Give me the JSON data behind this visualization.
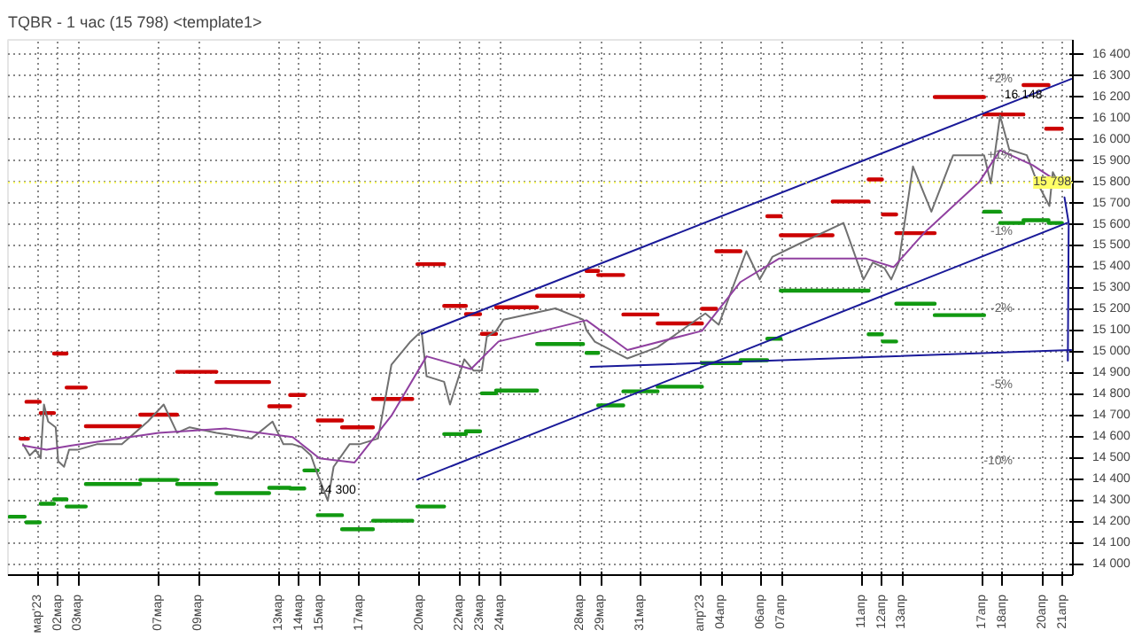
{
  "chart_data": {
    "type": "line",
    "title": "TQBR - 1 час (15 798) <template1>",
    "xlim": [
      "2023-02-27T12:00",
      "2023-04-21T12:00"
    ],
    "ylim": [
      13950,
      16470
    ],
    "xticks": [
      {
        "value": "2023-03-01",
        "label": "мар'23"
      },
      {
        "value": "2023-03-02",
        "label": "02мар"
      },
      {
        "value": "2023-03-03",
        "label": "03мар"
      },
      {
        "value": "2023-03-07",
        "label": "07мар"
      },
      {
        "value": "2023-03-09",
        "label": "09мар"
      },
      {
        "value": "2023-03-13",
        "label": "13мар"
      },
      {
        "value": "2023-03-14",
        "label": "14мар"
      },
      {
        "value": "2023-03-15",
        "label": "15мар"
      },
      {
        "value": "2023-03-17",
        "label": "17мар"
      },
      {
        "value": "2023-03-20",
        "label": "20мар"
      },
      {
        "value": "2023-03-22",
        "label": "22мар"
      },
      {
        "value": "2023-03-23",
        "label": "23мар"
      },
      {
        "value": "2023-03-24",
        "label": "24мар"
      },
      {
        "value": "2023-03-28",
        "label": "28мар"
      },
      {
        "value": "2023-03-29",
        "label": "29мар"
      },
      {
        "value": "2023-03-31",
        "label": "31мар"
      },
      {
        "value": "2023-04-03",
        "label": "апр'23"
      },
      {
        "value": "2023-04-04",
        "label": "04апр"
      },
      {
        "value": "2023-04-06",
        "label": "06апр"
      },
      {
        "value": "2023-04-07",
        "label": "07апр"
      },
      {
        "value": "2023-04-11",
        "label": "11апр"
      },
      {
        "value": "2023-04-12",
        "label": "12апр"
      },
      {
        "value": "2023-04-13",
        "label": "13апр"
      },
      {
        "value": "2023-04-17",
        "label": "17апр"
      },
      {
        "value": "2023-04-18",
        "label": "18апр"
      },
      {
        "value": "2023-04-20",
        "label": "20апр"
      },
      {
        "value": "2023-04-21",
        "label": "21апр"
      }
    ],
    "yticks": [
      {
        "value": 14000,
        "label": "14 000"
      },
      {
        "value": 14100,
        "label": "14 100"
      },
      {
        "value": 14200,
        "label": "14 200"
      },
      {
        "value": 14300,
        "label": "14 300"
      },
      {
        "value": 14400,
        "label": "14 400"
      },
      {
        "value": 14500,
        "label": "14 500"
      },
      {
        "value": 14600,
        "label": "14 600"
      },
      {
        "value": 14700,
        "label": "14 700"
      },
      {
        "value": 14800,
        "label": "14 800"
      },
      {
        "value": 14900,
        "label": "14 900"
      },
      {
        "value": 15000,
        "label": "15 000"
      },
      {
        "value": 15100,
        "label": "15 100"
      },
      {
        "value": 15200,
        "label": "15 200"
      },
      {
        "value": 15300,
        "label": "15 300"
      },
      {
        "value": 15400,
        "label": "15 400"
      },
      {
        "value": 15500,
        "label": "15 500"
      },
      {
        "value": 15600,
        "label": "15 600"
      },
      {
        "value": 15700,
        "label": "15 700"
      },
      {
        "value": 15800,
        "label": "15 800"
      },
      {
        "value": 15900,
        "label": "15 900"
      },
      {
        "value": 16000,
        "label": "16 000"
      },
      {
        "value": 16100,
        "label": "16 100"
      },
      {
        "value": 16200,
        "label": "16 200"
      },
      {
        "value": 16300,
        "label": "16 300"
      },
      {
        "value": 16400,
        "label": "16 400"
      }
    ],
    "grid": true,
    "line_style": "solid",
    "series": [
      {
        "color": "#cc0000",
        "x": [
          "2023-02-28T03:00",
          "2023-02-28T12:00",
          null,
          "2023-02-28T10:00",
          "2023-03-01T02:00",
          null,
          "2023-03-01T03:00",
          "2023-03-01T19:00",
          null,
          "2023-03-01T19:00",
          "2023-03-02T10:00",
          null,
          "2023-03-02T10:00",
          "2023-03-03T09:00",
          null,
          "2023-03-03T09:00",
          "2023-03-06T02:00",
          null,
          "2023-03-06T02:00",
          "2023-03-07T22:00",
          null,
          "2023-03-07T22:00",
          "2023-03-09T21:00",
          null,
          "2023-03-09T21:00",
          "2023-03-12T12:00",
          null,
          "2023-03-12T12:00",
          "2023-03-13T13:00",
          null,
          "2023-03-13T13:00",
          "2023-03-14T06:00",
          null,
          "2023-03-14T22:00",
          "2023-03-16T03:00",
          null,
          "2023-03-16T03:00",
          "2023-03-17T16:00",
          null,
          "2023-03-17T16:00",
          "2023-03-19T15:00",
          null,
          "2023-03-19T21:00",
          "2023-03-21T05:00",
          null,
          "2023-03-21T05:00",
          "2023-03-22T07:00",
          null,
          "2023-03-22T07:00",
          "2023-03-23T00:00",
          null,
          "2023-03-23T02:00",
          "2023-03-23T19:00",
          null,
          "2023-03-23T19:00",
          "2023-03-25T20:00",
          null,
          "2023-03-25T20:00",
          "2023-03-28T03:00",
          null,
          "2023-03-28T07:00",
          "2023-03-28T21:00",
          null,
          "2023-03-28T21:00",
          "2023-03-30T03:00",
          null,
          "2023-03-30T03:00",
          "2023-03-31T20:00",
          null,
          "2023-03-31T20:00",
          "2023-04-03T01:00",
          null,
          "2023-04-03T01:00",
          "2023-04-03T18:00",
          null,
          "2023-04-03T18:00",
          "2023-04-04T23:00",
          null,
          "2023-04-06T07:00",
          "2023-04-06T23:00",
          null,
          "2023-04-06T23:00",
          "2023-04-09T13:00",
          null,
          "2023-04-09T13:00",
          "2023-04-11T08:00",
          null,
          "2023-04-11T08:00",
          "2023-04-12T00:00",
          null,
          "2023-04-12T01:00",
          "2023-04-12T17:00",
          null,
          "2023-04-12T17:00",
          "2023-04-14T15:00",
          null,
          "2023-04-14T15:00",
          "2023-04-17T02:00",
          null,
          "2023-04-17T02:00",
          "2023-04-17T21:00",
          null,
          "2023-04-17T21:00",
          "2023-04-19T01:00",
          null,
          "2023-04-19T01:00",
          "2023-04-20T07:00",
          null,
          "2023-04-20T04:00",
          "2023-04-20T23:00"
        ],
        "values": [
          14592,
          14592,
          null,
          14766,
          14766,
          null,
          14713,
          14713,
          null,
          14993,
          14993,
          null,
          14833,
          14833,
          null,
          14651,
          14651,
          null,
          14705,
          14705,
          null,
          14907,
          14907,
          null,
          14859,
          14859,
          null,
          14745,
          14745,
          null,
          14798,
          14798,
          null,
          14678,
          14678,
          null,
          14646,
          14646,
          null,
          14779,
          14779,
          null,
          15414,
          15414,
          null,
          15217,
          15217,
          null,
          15179,
          15179,
          null,
          15086,
          15086,
          null,
          15211,
          15211,
          null,
          15265,
          15265,
          null,
          15382,
          15382,
          null,
          15363,
          15363,
          null,
          15177,
          15177,
          null,
          15135,
          15135,
          null,
          15204,
          15204,
          null,
          15475,
          15475,
          null,
          15640,
          15640,
          null,
          15550,
          15550,
          null,
          15709,
          15709,
          null,
          15813,
          15813,
          null,
          15648,
          15648,
          null,
          15560,
          15560,
          null,
          16201,
          16201,
          null,
          16119,
          16119,
          null,
          16119,
          16119,
          null,
          16257,
          16257,
          null,
          16052,
          16052
        ]
      },
      {
        "color": "#119911",
        "x": [
          "2023-02-27T14:00",
          "2023-02-28T08:00",
          null,
          "2023-02-28T10:00",
          "2023-03-01T02:00",
          null,
          "2023-03-01T03:00",
          "2023-03-01T19:00",
          null,
          "2023-03-01T19:00",
          "2023-03-02T10:00",
          null,
          "2023-03-02T10:00",
          "2023-03-03T09:00",
          null,
          "2023-03-03T09:00",
          "2023-03-06T02:00",
          null,
          "2023-03-06T02:00",
          "2023-03-07T22:00",
          null,
          "2023-03-07T22:00",
          "2023-03-09T21:00",
          null,
          "2023-03-09T21:00",
          "2023-03-12T12:00",
          null,
          "2023-03-12T12:00",
          "2023-03-13T13:00",
          null,
          "2023-03-13T13:00",
          "2023-03-14T06:00",
          null,
          "2023-03-14T06:00",
          "2023-03-14T22:00",
          null,
          "2023-03-14T22:00",
          "2023-03-16T03:00",
          null,
          "2023-03-16T03:00",
          "2023-03-17T16:00",
          null,
          "2023-03-17T16:00",
          "2023-03-19T15:00",
          null,
          "2023-03-19T21:00",
          "2023-03-21T05:00",
          null,
          "2023-03-21T05:00",
          "2023-03-22T07:00",
          null,
          "2023-03-22T07:00",
          "2023-03-23T00:00",
          null,
          "2023-03-23T02:00",
          "2023-03-23T19:00",
          null,
          "2023-03-23T19:00",
          "2023-03-25T20:00",
          null,
          "2023-03-25T20:00",
          "2023-03-28T03:00",
          null,
          "2023-03-28T07:00",
          "2023-03-28T21:00",
          null,
          "2023-03-28T21:00",
          "2023-03-30T03:00",
          null,
          "2023-03-30T03:00",
          "2023-03-31T20:00",
          null,
          "2023-03-31T20:00",
          "2023-04-03T01:00",
          null,
          "2023-04-03T01:00",
          "2023-04-03T18:00",
          null,
          "2023-04-03T18:00",
          "2023-04-04T23:00",
          null,
          "2023-04-04T23:00",
          "2023-04-06T07:00",
          null,
          "2023-04-06T07:00",
          "2023-04-06T23:00",
          null,
          "2023-04-06T23:00",
          "2023-04-09T13:00",
          null,
          "2023-04-09T13:00",
          "2023-04-11T08:00",
          null,
          "2023-04-11T08:00",
          "2023-04-12T00:00",
          null,
          "2023-04-12T01:00",
          "2023-04-12T17:00",
          null,
          "2023-04-12T17:00",
          "2023-04-14T15:00",
          null,
          "2023-04-14T15:00",
          "2023-04-17T02:00",
          null,
          "2023-04-17T02:00",
          "2023-04-17T21:00",
          null,
          "2023-04-17T21:00",
          "2023-04-19T01:00",
          null,
          "2023-04-19T01:00",
          "2023-04-20T07:00",
          null,
          "2023-04-20T07:00",
          "2023-04-20T23:00"
        ],
        "values": [
          14225,
          14225,
          null,
          14198,
          14198,
          null,
          14286,
          14286,
          null,
          14307,
          14307,
          null,
          14273,
          14273,
          null,
          14379,
          14379,
          null,
          14398,
          14398,
          null,
          14379,
          14379,
          null,
          14336,
          14336,
          null,
          14361,
          14361,
          null,
          14358,
          14358,
          null,
          14443,
          14443,
          null,
          14232,
          14232,
          null,
          14166,
          14166,
          null,
          14206,
          14206,
          null,
          14273,
          14273,
          null,
          14614,
          14614,
          null,
          14627,
          14627,
          null,
          14806,
          14806,
          null,
          14819,
          14819,
          null,
          15038,
          15038,
          null,
          14996,
          14996,
          null,
          14749,
          14749,
          null,
          14815,
          14815,
          null,
          14837,
          14837,
          null,
          14948,
          14948,
          null,
          14948,
          14948,
          null,
          14962,
          14962,
          null,
          15063,
          15063,
          null,
          15289,
          15289,
          null,
          15289,
          15289,
          null,
          15084,
          15084,
          null,
          15050,
          15050,
          null,
          15228,
          15228,
          null,
          15174,
          15174,
          null,
          15661,
          15661,
          null,
          15608,
          15608,
          null,
          15621,
          15621,
          null,
          15608,
          15608
        ]
      },
      {
        "color": "#707070",
        "x": [
          "2023-02-28T06:00",
          "2023-02-28T14:00",
          "2023-02-28T21:00",
          "2023-03-01T03:00",
          "2023-03-01T07:00",
          "2023-03-01T12:00",
          "2023-03-01T21:00",
          "2023-03-02T00:00",
          "2023-03-02T07:00",
          "2023-03-02T13:00",
          "2023-03-02T23:00",
          "2023-03-03T22:00",
          "2023-03-05T04:00",
          "2023-03-06T11:00",
          "2023-03-07T06:00",
          "2023-03-07T22:00",
          "2023-03-08T13:00",
          "2023-03-09T21:00",
          "2023-03-11T15:00",
          "2023-03-12T16:00",
          "2023-03-13T05:00",
          "2023-03-13T16:00",
          "2023-03-14T03:00",
          "2023-03-14T14:00",
          "2023-03-14T21:00",
          "2023-03-15T10:00",
          "2023-03-15T17:00",
          "2023-03-16T12:00",
          "2023-03-17T00:00",
          "2023-03-17T22:00",
          "2023-03-18T14:00",
          "2023-03-19T12:00",
          "2023-03-20T02:00",
          "2023-03-20T08:00",
          "2023-03-21T05:00",
          "2023-03-21T12:00",
          "2023-03-22T05:00",
          "2023-03-22T16:00",
          "2023-03-23T02:00",
          "2023-03-23T08:00",
          "2023-03-23T19:00",
          "2023-03-24T04:00",
          "2023-03-26T18:00",
          "2023-03-28T03:00",
          "2023-03-28T07:00",
          "2023-03-28T17:00",
          "2023-03-30T08:00",
          "2023-03-31T20:00",
          "2023-04-03T05:00",
          "2023-04-03T21:00",
          "2023-04-05T06:00",
          "2023-04-05T22:00",
          "2023-04-06T13:00",
          "2023-04-07T17:00",
          "2023-04-10T02:00",
          "2023-04-11T02:00",
          "2023-04-11T13:00",
          "2023-04-12T03:00",
          "2023-04-12T11:00",
          "2023-04-12T20:00",
          "2023-04-13T13:00",
          "2023-04-14T11:00",
          "2023-04-15T13:00",
          "2023-04-17T02:00",
          "2023-04-17T10:00",
          "2023-04-17T21:00",
          "2023-04-18T08:00",
          "2023-04-19T05:00",
          "2023-04-19T18:00",
          "2023-04-20T08:00",
          "2023-04-20T12:00",
          "2023-04-20T19:00"
        ],
        "values": [
          14566,
          14513,
          14540,
          14500,
          14753,
          14673,
          14646,
          14486,
          14460,
          14540,
          14540,
          14566,
          14566,
          14673,
          14753,
          14620,
          14646,
          14620,
          14593,
          14673,
          14566,
          14566,
          14553,
          14513,
          14433,
          14300,
          14460,
          14566,
          14566,
          14593,
          14940,
          15046,
          15099,
          14886,
          14860,
          14753,
          14966,
          14913,
          14913,
          15073,
          15099,
          15153,
          15206,
          15153,
          15103,
          15049,
          14970,
          15023,
          15182,
          15129,
          15475,
          15342,
          15448,
          15502,
          15608,
          15342,
          15422,
          15395,
          15342,
          15422,
          15874,
          15661,
          15927,
          15927,
          15794,
          16113,
          15954,
          15927,
          15794,
          15688,
          15847,
          15794
        ]
      },
      {
        "color": "#9040a0",
        "x": [
          "2023-02-28T06:00",
          "2023-03-01T10:00",
          "2023-03-02T16:00",
          "2023-03-07T00:00",
          "2023-03-10T09:00",
          "2023-03-13T16:00",
          "2023-03-15T00:00",
          "2023-03-16T18:00",
          "2023-03-18T14:00",
          "2023-03-20T08:00",
          "2023-03-22T13:00",
          "2023-03-23T22:00",
          "2023-03-28T07:00",
          "2023-03-30T08:00",
          "2023-04-03T01:00",
          "2023-04-04T23:00",
          "2023-04-06T21:00",
          "2023-04-11T05:00",
          "2023-04-12T14:00",
          "2023-04-14T02:00",
          "2023-04-16T20:00",
          "2023-04-17T21:00",
          "2023-04-19T12:00",
          "2023-04-20T19:00"
        ],
        "values": [
          14560,
          14540,
          14560,
          14620,
          14640,
          14600,
          14500,
          14480,
          14700,
          14980,
          14920,
          15050,
          15150,
          15010,
          15100,
          15330,
          15440,
          15440,
          15400,
          15560,
          15800,
          15950,
          15880,
          15800
        ]
      },
      {
        "color": "#1a1a99",
        "x": [
          "2023-03-20T02:00",
          "2023-04-21T10:00"
        ],
        "values": [
          15086,
          16286
        ]
      },
      {
        "color": "#1a1a99",
        "x": [
          "2023-03-19T21:00",
          "2023-04-21T05:00"
        ],
        "values": [
          14400,
          15608
        ]
      },
      {
        "color": "#1a1a99",
        "x": [
          "2023-03-28T12:00",
          "2023-04-21T10:00"
        ],
        "values": [
          14930,
          15010
        ]
      },
      {
        "color": "#1a1a99",
        "x": [
          "2023-04-21T02:00",
          "2023-04-21T07:00",
          "2023-04-21T06:00"
        ],
        "values": [
          15728,
          15608,
          14960
        ]
      }
    ],
    "annotations": [
      {
        "text": "14 300",
        "x": "2023-03-15T21:00",
        "y": 14300
      },
      {
        "text": "16 148",
        "x": "2023-04-19T01:00",
        "y": 16161
      },
      "+2%",
      "+1%",
      "-1%",
      "-2%",
      "-5%",
      "-10%"
    ],
    "ref_lines": [
      {
        "axis": "y",
        "value": 15798,
        "label": "15 798",
        "color": "#ffff66"
      }
    ]
  }
}
